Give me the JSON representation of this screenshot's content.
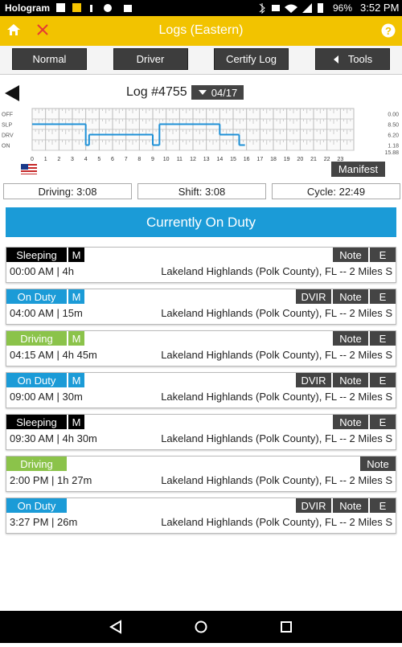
{
  "status_bar": {
    "carrier": "Hologram",
    "battery": "96%",
    "time": "3:52 PM"
  },
  "app_bar": {
    "title": "Logs (Eastern)"
  },
  "tabs": [
    "Normal",
    "Driver",
    "Certify Log",
    "Tools"
  ],
  "log": {
    "title": "Log #4755",
    "date": "04/17"
  },
  "graph": {
    "rows": [
      "OFF",
      "SLP",
      "DRV",
      "ON"
    ],
    "totals": [
      "0.00",
      "8.50",
      "6.20",
      "1.18"
    ],
    "total": "15.88",
    "color": "#1e90d6",
    "xlim": [
      0,
      24
    ],
    "xticks": [
      0,
      1,
      2,
      3,
      4,
      5,
      6,
      7,
      8,
      9,
      10,
      11,
      12,
      13,
      14,
      15,
      16,
      17,
      18,
      19,
      20,
      21,
      22,
      23
    ],
    "segments": [
      {
        "status": "SLP",
        "start": 0,
        "end": 4
      },
      {
        "status": "ON",
        "start": 4,
        "end": 4.25
      },
      {
        "status": "DRV",
        "start": 4.25,
        "end": 9
      },
      {
        "status": "ON",
        "start": 9,
        "end": 9.5
      },
      {
        "status": "SLP",
        "start": 9.5,
        "end": 14
      },
      {
        "status": "DRV",
        "start": 14,
        "end": 15.45
      },
      {
        "status": "ON",
        "start": 15.45,
        "end": 15.88
      }
    ]
  },
  "manifest": "Manifest",
  "summary": [
    "Driving: 3:08",
    "Shift: 3:08",
    "Cycle: 22:49"
  ],
  "banner": "Currently On Duty",
  "status_colors": {
    "Sleeping": "#000000",
    "On Duty": "#1b9bd7",
    "Driving": "#8bc34a"
  },
  "entries": [
    {
      "status": "Sleeping",
      "flag": "M",
      "buttons": [
        "Note",
        "E"
      ],
      "detail": "00:00 AM | 4h",
      "location": "Lakeland Highlands (Polk County), FL -- 2 Miles S"
    },
    {
      "status": "On Duty",
      "flag": "M",
      "buttons": [
        "DVIR",
        "Note",
        "E"
      ],
      "detail": "04:00 AM | 15m",
      "location": "Lakeland Highlands (Polk County), FL -- 2 Miles S"
    },
    {
      "status": "Driving",
      "flag": "M",
      "buttons": [
        "Note",
        "E"
      ],
      "detail": "04:15 AM | 4h 45m",
      "location": "Lakeland Highlands (Polk County), FL -- 2 Miles S"
    },
    {
      "status": "On Duty",
      "flag": "M",
      "buttons": [
        "DVIR",
        "Note",
        "E"
      ],
      "detail": "09:00 AM | 30m",
      "location": "Lakeland Highlands (Polk County), FL -- 2 Miles S"
    },
    {
      "status": "Sleeping",
      "flag": "M",
      "buttons": [
        "Note",
        "E"
      ],
      "detail": "09:30 AM | 4h 30m",
      "location": "Lakeland Highlands (Polk County), FL -- 2 Miles S"
    },
    {
      "status": "Driving",
      "buttons": [
        "Note"
      ],
      "detail": "2:00 PM | 1h 27m",
      "location": "Lakeland Highlands (Polk County), FL -- 2 Miles S"
    },
    {
      "status": "On Duty",
      "buttons": [
        "DVIR",
        "Note",
        "E"
      ],
      "detail": "3:27 PM | 26m",
      "location": "Lakeland Highlands (Polk County), FL -- 2 Miles S"
    }
  ]
}
